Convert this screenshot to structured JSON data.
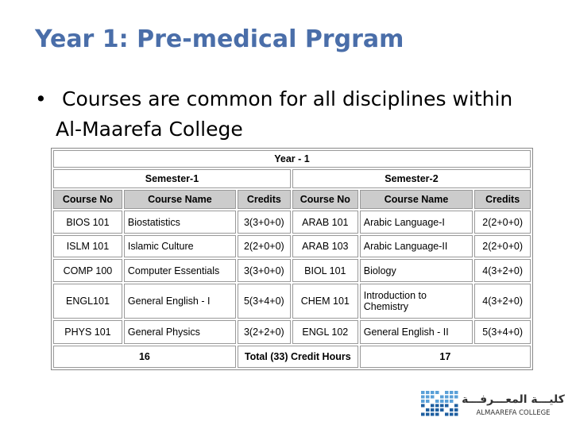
{
  "header": {
    "title": "Year 1: Pre-medical Prgram"
  },
  "bullet": "Courses are common for all disciplines within Al-Maarefa College",
  "table": {
    "year": "Year - 1",
    "semesters": [
      "Semester-1",
      "Semester-2"
    ],
    "columns": [
      "Course No",
      "Course Name",
      "Credits",
      "Course No",
      "Course Name",
      "Credits"
    ],
    "rows": [
      [
        "BIOS 101",
        "Biostatistics",
        "3(3+0+0)",
        "ARAB 101",
        "Arabic Language-I",
        "2(2+0+0)"
      ],
      [
        "ISLM 101",
        "Islamic Culture",
        "2(2+0+0)",
        "ARAB 103",
        "Arabic Language-II",
        "2(2+0+0)"
      ],
      [
        "COMP 100",
        "Computer Essentials",
        "3(3+0+0)",
        "BIOL 101",
        "Biology",
        "4(3+2+0)"
      ],
      [
        "ENGL101",
        "General English - I",
        "5(3+4+0)",
        "CHEM 101",
        "Introduction to Chemistry",
        "4(3+2+0)"
      ],
      [
        "PHYS 101",
        "General Physics",
        "3(2+2+0)",
        "ENGL 102",
        "General English - II",
        "5(3+4+0)"
      ]
    ],
    "footer": [
      "16",
      "Total  (33) Credit Hours",
      "17"
    ]
  },
  "logo": {
    "arabic": "كليـــة المعـــرفـــة",
    "latin": "ALMAAREFA COLLEGE"
  }
}
